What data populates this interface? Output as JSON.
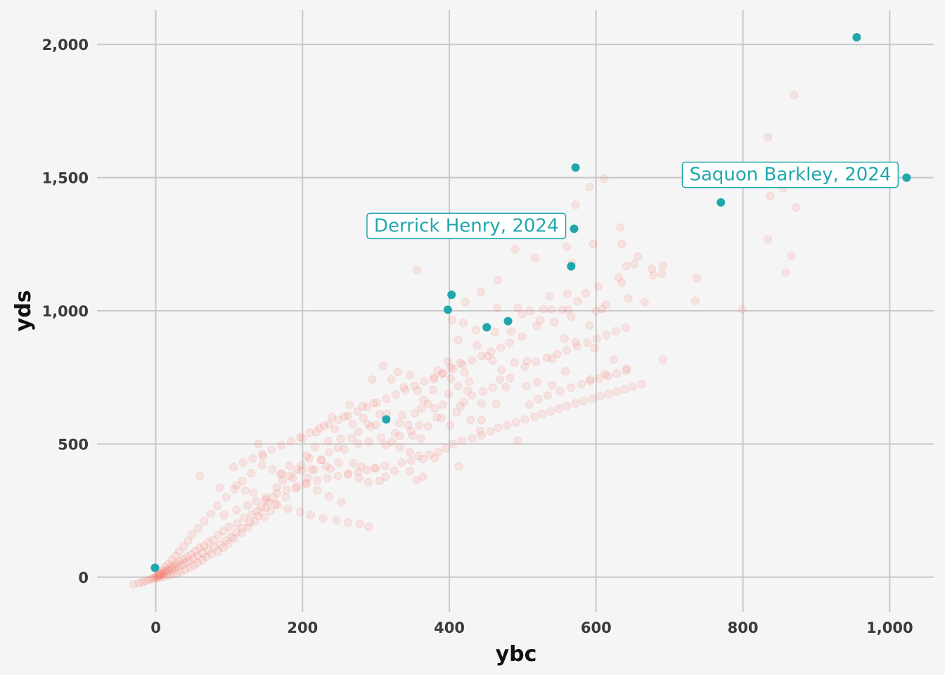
{
  "chart_data": {
    "type": "scatter",
    "xlabel": "ybc",
    "ylabel": "yds",
    "xlim": [
      -80,
      1060
    ],
    "ylim": [
      -130,
      2130
    ],
    "grid": true,
    "legend": "none",
    "x_ticks": [
      {
        "value": 0,
        "label": "0"
      },
      {
        "value": 200,
        "label": "200"
      },
      {
        "value": 400,
        "label": "400"
      },
      {
        "value": 600,
        "label": "600"
      },
      {
        "value": 800,
        "label": "800"
      },
      {
        "value": 1000,
        "label": "1,000"
      }
    ],
    "y_ticks": [
      {
        "value": 0,
        "label": "0"
      },
      {
        "value": 500,
        "label": "500"
      },
      {
        "value": 1000,
        "label": "1,000"
      },
      {
        "value": 1500,
        "label": "1,500"
      },
      {
        "value": 2000,
        "label": "2,000"
      }
    ],
    "colors": {
      "background_series": "#f8766d",
      "highlight_series": "#1fa7ad"
    },
    "highlight_points": [
      {
        "x": 955,
        "y": 2027
      },
      {
        "x": 1023,
        "y": 1500
      },
      {
        "x": 572,
        "y": 1538
      },
      {
        "x": 770,
        "y": 1407
      },
      {
        "x": 570,
        "y": 1308
      },
      {
        "x": 566,
        "y": 1167
      },
      {
        "x": 403,
        "y": 1060
      },
      {
        "x": 398,
        "y": 1004
      },
      {
        "x": 480,
        "y": 961
      },
      {
        "x": 451,
        "y": 938
      },
      {
        "x": 314,
        "y": 592
      },
      {
        "x": -1,
        "y": 35
      }
    ],
    "annotations": [
      {
        "text": "Saquon Barkley, 2024",
        "x": 1023,
        "y": 1500
      },
      {
        "text": "Derrick Henry, 2024",
        "x": 570,
        "y": 1308
      }
    ],
    "background_points": [
      [
        870,
        1810
      ],
      [
        834,
        1652
      ],
      [
        846,
        1500
      ],
      [
        837,
        1432
      ],
      [
        855,
        1460
      ],
      [
        872,
        1388
      ],
      [
        834,
        1268
      ],
      [
        866,
        1207
      ],
      [
        858,
        1143
      ],
      [
        799,
        1005
      ],
      [
        735,
        1038
      ],
      [
        737,
        1122
      ],
      [
        691,
        1170
      ],
      [
        676,
        1157
      ],
      [
        690,
        1139
      ],
      [
        611,
        1496
      ],
      [
        591,
        1465
      ],
      [
        572,
        1398
      ],
      [
        633,
        1313
      ],
      [
        596,
        1252
      ],
      [
        635,
        1250
      ],
      [
        560,
        1240
      ],
      [
        490,
        1230
      ],
      [
        517,
        1199
      ],
      [
        567,
        1179
      ],
      [
        641,
        1168
      ],
      [
        657,
        1203
      ],
      [
        635,
        1105
      ],
      [
        631,
        1124
      ],
      [
        644,
        1047
      ],
      [
        666,
        1032
      ],
      [
        652,
        1175
      ],
      [
        586,
        1066
      ],
      [
        603,
        1091
      ],
      [
        561,
        1063
      ],
      [
        536,
        1055
      ],
      [
        562,
        1004
      ],
      [
        575,
        1035
      ],
      [
        528,
        1006
      ],
      [
        510,
        999
      ],
      [
        493,
        1011
      ],
      [
        499,
        988
      ],
      [
        443,
        1072
      ],
      [
        465,
        1011
      ],
      [
        422,
        1033
      ],
      [
        419,
        954
      ],
      [
        404,
        965
      ],
      [
        466,
        1115
      ],
      [
        436,
        928
      ],
      [
        412,
        889
      ],
      [
        462,
        920
      ],
      [
        484,
        922
      ],
      [
        499,
        903
      ],
      [
        519,
        943
      ],
      [
        524,
        964
      ],
      [
        543,
        957
      ],
      [
        557,
        896
      ],
      [
        572,
        881
      ],
      [
        598,
        860
      ],
      [
        591,
        945
      ],
      [
        600,
        999
      ],
      [
        608,
        1007
      ],
      [
        614,
        1022
      ],
      [
        539,
        1005
      ],
      [
        554,
        1003
      ],
      [
        566,
        978
      ],
      [
        452,
        830
      ],
      [
        438,
        870
      ],
      [
        459,
        813
      ],
      [
        489,
        806
      ],
      [
        503,
        790
      ],
      [
        506,
        812
      ],
      [
        540,
        819
      ],
      [
        558,
        773
      ],
      [
        592,
        742
      ],
      [
        612,
        762
      ],
      [
        624,
        817
      ],
      [
        642,
        783
      ],
      [
        678,
        1133
      ],
      [
        691,
        817
      ],
      [
        356,
        1152
      ],
      [
        330,
        770
      ],
      [
        346,
        758
      ],
      [
        310,
        793
      ],
      [
        295,
        742
      ],
      [
        321,
        742
      ],
      [
        338,
        713
      ],
      [
        357,
        700
      ],
      [
        379,
        743
      ],
      [
        398,
        810
      ],
      [
        402,
        789
      ],
      [
        415,
        804
      ],
      [
        421,
        768
      ],
      [
        384,
        776
      ],
      [
        431,
        682
      ],
      [
        415,
        642
      ],
      [
        444,
        652
      ],
      [
        464,
        651
      ],
      [
        442,
        549
      ],
      [
        429,
        591
      ],
      [
        401,
        571
      ],
      [
        383,
        600
      ],
      [
        380,
        634
      ],
      [
        353,
        616
      ],
      [
        371,
        651
      ],
      [
        362,
        633
      ],
      [
        336,
        608
      ],
      [
        332,
        579
      ],
      [
        326,
        541
      ],
      [
        315,
        613
      ],
      [
        297,
        653
      ],
      [
        283,
        597
      ],
      [
        268,
        575
      ],
      [
        282,
        642
      ],
      [
        264,
        647
      ],
      [
        257,
        603
      ],
      [
        240,
        600
      ],
      [
        244,
        556
      ],
      [
        252,
        519
      ],
      [
        267,
        521
      ],
      [
        276,
        501
      ],
      [
        290,
        508
      ],
      [
        293,
        564
      ],
      [
        305,
        612
      ],
      [
        313,
        497
      ],
      [
        332,
        487
      ],
      [
        346,
        470
      ],
      [
        364,
        443
      ],
      [
        380,
        447
      ],
      [
        413,
        416
      ],
      [
        344,
        570
      ],
      [
        361,
        520
      ],
      [
        350,
        531
      ],
      [
        371,
        567
      ],
      [
        389,
        598
      ],
      [
        425,
        700
      ],
      [
        444,
        589
      ],
      [
        446,
        697
      ],
      [
        459,
        712
      ],
      [
        477,
        713
      ],
      [
        493,
        513
      ],
      [
        505,
        717
      ],
      [
        520,
        731
      ],
      [
        540,
        720
      ],
      [
        469,
        742
      ],
      [
        483,
        748
      ],
      [
        471,
        778
      ],
      [
        427,
        734
      ],
      [
        412,
        717
      ],
      [
        402,
        745
      ],
      [
        390,
        763
      ],
      [
        378,
        703
      ],
      [
        365,
        665
      ],
      [
        391,
        648
      ],
      [
        410,
        618
      ],
      [
        420,
        657
      ],
      [
        399,
        688
      ],
      [
        359,
        570
      ],
      [
        348,
        548
      ],
      [
        332,
        530
      ],
      [
        322,
        508
      ],
      [
        307,
        523
      ],
      [
        300,
        572
      ],
      [
        289,
        575
      ],
      [
        276,
        545
      ],
      [
        257,
        481
      ],
      [
        248,
        485
      ],
      [
        235,
        510
      ],
      [
        217,
        488
      ],
      [
        206,
        455
      ],
      [
        200,
        520
      ],
      [
        219,
        545
      ],
      [
        229,
        568
      ],
      [
        236,
        468
      ],
      [
        226,
        440
      ],
      [
        212,
        405
      ],
      [
        199,
        420
      ],
      [
        192,
        402
      ],
      [
        183,
        381
      ],
      [
        173,
        362
      ],
      [
        165,
        337
      ],
      [
        160,
        300
      ],
      [
        154,
        280
      ],
      [
        144,
        262
      ],
      [
        138,
        247
      ],
      [
        130,
        235
      ],
      [
        120,
        222
      ],
      [
        111,
        202
      ],
      [
        100,
        188
      ],
      [
        92,
        173
      ],
      [
        85,
        158
      ],
      [
        78,
        140
      ],
      [
        72,
        132
      ],
      [
        66,
        118
      ],
      [
        60,
        110
      ],
      [
        54,
        98
      ],
      [
        48,
        86
      ],
      [
        43,
        77
      ],
      [
        38,
        68
      ],
      [
        33,
        60
      ],
      [
        28,
        50
      ],
      [
        24,
        42
      ],
      [
        20,
        36
      ],
      [
        16,
        28
      ],
      [
        12,
        22
      ],
      [
        8,
        16
      ],
      [
        5,
        10
      ],
      [
        2,
        5
      ],
      [
        0,
        0
      ],
      [
        -3,
        -3
      ],
      [
        -6,
        -7
      ],
      [
        -10,
        -11
      ],
      [
        -14,
        -15
      ],
      [
        -18,
        -19
      ],
      [
        -23,
        -22
      ],
      [
        -30,
        -26
      ],
      [
        140,
        499
      ],
      [
        146,
        454
      ],
      [
        170,
        386
      ],
      [
        182,
        419
      ],
      [
        199,
        400
      ],
      [
        209,
        446
      ],
      [
        225,
        440
      ],
      [
        238,
        407
      ],
      [
        262,
        385
      ],
      [
        277,
        370
      ],
      [
        290,
        356
      ],
      [
        305,
        361
      ],
      [
        313,
        377
      ],
      [
        325,
        399
      ],
      [
        346,
        397
      ],
      [
        355,
        364
      ],
      [
        364,
        377
      ],
      [
        298,
        410
      ],
      [
        280,
        415
      ],
      [
        269,
        428
      ],
      [
        249,
        430
      ],
      [
        232,
        416
      ],
      [
        216,
        402
      ],
      [
        207,
        373
      ],
      [
        191,
        333
      ],
      [
        177,
        300
      ],
      [
        166,
        270
      ],
      [
        157,
        248
      ],
      [
        148,
        226
      ],
      [
        135,
        209
      ],
      [
        126,
        186
      ],
      [
        117,
        166
      ],
      [
        107,
        145
      ],
      [
        99,
        125
      ],
      [
        92,
        110
      ],
      [
        85,
        97
      ],
      [
        76,
        86
      ],
      [
        69,
        75
      ],
      [
        63,
        64
      ],
      [
        57,
        53
      ],
      [
        52,
        43
      ],
      [
        46,
        35
      ],
      [
        40,
        28
      ],
      [
        34,
        20
      ],
      [
        29,
        14
      ],
      [
        23,
        10
      ],
      [
        18,
        6
      ],
      [
        12,
        2
      ],
      [
        7,
        0
      ],
      [
        3,
        -4
      ],
      [
        -1,
        -6
      ],
      [
        150,
        260
      ],
      [
        140,
        230
      ],
      [
        128,
        205
      ],
      [
        118,
        185
      ],
      [
        110,
        168
      ],
      [
        103,
        152
      ],
      [
        96,
        137
      ],
      [
        88,
        124
      ],
      [
        80,
        112
      ],
      [
        72,
        100
      ],
      [
        64,
        90
      ],
      [
        57,
        79
      ],
      [
        51,
        70
      ],
      [
        45,
        61
      ],
      [
        40,
        53
      ],
      [
        35,
        46
      ],
      [
        30,
        40
      ],
      [
        26,
        34
      ],
      [
        22,
        28
      ],
      [
        18,
        23
      ],
      [
        14,
        18
      ],
      [
        11,
        14
      ],
      [
        8,
        10
      ],
      [
        6,
        7
      ],
      [
        4,
        4
      ],
      [
        60,
        380
      ],
      [
        87,
        336
      ],
      [
        110,
        344
      ],
      [
        122,
        325
      ],
      [
        133,
        317
      ],
      [
        150,
        290
      ],
      [
        163,
        275
      ],
      [
        180,
        256
      ],
      [
        197,
        244
      ],
      [
        211,
        233
      ],
      [
        228,
        221
      ],
      [
        246,
        213
      ],
      [
        262,
        205
      ],
      [
        278,
        199
      ],
      [
        290,
        188
      ],
      [
        253,
        281
      ],
      [
        236,
        303
      ],
      [
        220,
        326
      ],
      [
        204,
        350
      ],
      [
        187,
        371
      ],
      [
        172,
        389
      ],
      [
        159,
        405
      ],
      [
        145,
        420
      ],
      [
        130,
        390
      ],
      [
        118,
        360
      ],
      [
        107,
        330
      ],
      [
        96,
        300
      ],
      [
        84,
        268
      ],
      [
        75,
        238
      ],
      [
        66,
        210
      ],
      [
        58,
        184
      ],
      [
        50,
        160
      ],
      [
        44,
        137
      ],
      [
        38,
        116
      ],
      [
        32,
        97
      ],
      [
        27,
        80
      ],
      [
        22,
        64
      ],
      [
        17,
        50
      ],
      [
        13,
        37
      ],
      [
        9,
        26
      ],
      [
        5,
        15
      ],
      [
        93,
        233
      ],
      [
        110,
        252
      ],
      [
        125,
        269
      ],
      [
        137,
        285
      ],
      [
        150,
        300
      ],
      [
        165,
        315
      ],
      [
        178,
        328
      ],
      [
        192,
        340
      ],
      [
        206,
        353
      ],
      [
        220,
        363
      ],
      [
        234,
        372
      ],
      [
        248,
        380
      ],
      [
        262,
        389
      ],
      [
        276,
        395
      ],
      [
        288,
        402
      ],
      [
        300,
        408
      ],
      [
        312,
        417
      ],
      [
        335,
        430
      ],
      [
        348,
        438
      ],
      [
        358,
        455
      ],
      [
        373,
        460
      ],
      [
        385,
        470
      ],
      [
        395,
        483
      ],
      [
        405,
        500
      ],
      [
        417,
        512
      ],
      [
        431,
        521
      ],
      [
        444,
        532
      ],
      [
        456,
        547
      ],
      [
        467,
        560
      ],
      [
        479,
        570
      ],
      [
        491,
        581
      ],
      [
        503,
        592
      ],
      [
        516,
        602
      ],
      [
        527,
        613
      ],
      [
        538,
        622
      ],
      [
        549,
        632
      ],
      [
        560,
        642
      ],
      [
        572,
        652
      ],
      [
        583,
        661
      ],
      [
        595,
        670
      ],
      [
        606,
        679
      ],
      [
        617,
        688
      ],
      [
        628,
        697
      ],
      [
        639,
        706
      ],
      [
        650,
        715
      ],
      [
        662,
        724
      ],
      [
        509,
        648
      ],
      [
        521,
        668
      ],
      [
        534,
        682
      ],
      [
        551,
        697
      ],
      [
        566,
        712
      ],
      [
        580,
        724
      ],
      [
        592,
        735
      ],
      [
        604,
        745
      ],
      [
        616,
        755
      ],
      [
        628,
        765
      ],
      [
        641,
        775
      ],
      [
        518,
        808
      ],
      [
        533,
        823
      ],
      [
        547,
        838
      ],
      [
        560,
        852
      ],
      [
        574,
        867
      ],
      [
        588,
        881
      ],
      [
        601,
        895
      ],
      [
        614,
        909
      ],
      [
        627,
        923
      ],
      [
        640,
        937
      ],
      [
        482,
        880
      ],
      [
        470,
        862
      ],
      [
        457,
        846
      ],
      [
        444,
        830
      ],
      [
        431,
        814
      ],
      [
        418,
        798
      ],
      [
        405,
        782
      ],
      [
        392,
        766
      ],
      [
        379,
        750
      ],
      [
        366,
        734
      ],
      [
        353,
        718
      ],
      [
        340,
        702
      ],
      [
        327,
        686
      ],
      [
        314,
        670
      ],
      [
        301,
        654
      ],
      [
        288,
        638
      ],
      [
        275,
        622
      ],
      [
        262,
        606
      ],
      [
        249,
        590
      ],
      [
        236,
        574
      ],
      [
        223,
        558
      ],
      [
        210,
        542
      ],
      [
        197,
        526
      ],
      [
        184,
        510
      ],
      [
        171,
        494
      ],
      [
        158,
        478
      ],
      [
        145,
        462
      ],
      [
        132,
        446
      ],
      [
        119,
        430
      ],
      [
        106,
        414
      ]
    ]
  }
}
